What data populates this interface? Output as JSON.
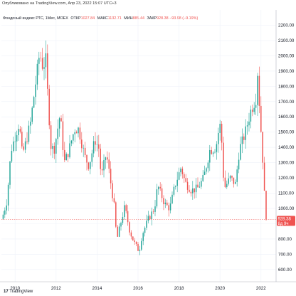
{
  "header": {
    "published": "Опубликовано на TradingView.com, Апр 23, 2022 15:07 UTC+3"
  },
  "legend": {
    "title": "Фондовый индекс РТС, 1Мес, MOEX",
    "open_label": "ОТКР",
    "open_value": "1027.84",
    "high_label": "МАКС",
    "high_value": "1132.71",
    "low_label": "МИН",
    "low_value": "885.44",
    "close_label": "ЗАКР",
    "close_value": "928.38",
    "change": "−93.98 (−9.19%)"
  },
  "price_tag": {
    "value": "928.38",
    "countdown": "8д 9ч"
  },
  "watermark": {
    "logo": "17",
    "text": "TradingView"
  },
  "colors": {
    "up": "#26a69a",
    "down": "#ef5350",
    "grid": "#f0f3fa",
    "axis_text": "#131722"
  },
  "chart_data": {
    "type": "candlestick",
    "title": "Фондовый индекс РТС, 1Мес, MOEX",
    "interval": "1 month",
    "y_axis_position": "right",
    "ylim": [
      520,
      2300
    ],
    "y_ticks": [
      2200,
      2100,
      2000,
      1900,
      1800,
      1700,
      1600,
      1500,
      1400,
      1300,
      1200,
      1100,
      1000,
      900,
      800,
      700,
      600
    ],
    "y_tick_labels": [
      "2200.00",
      "2100.00",
      "2000.00",
      "1900.00",
      "1800.00",
      "1700.00",
      "1600.00",
      "1500.00",
      "1400.00",
      "1300.00",
      "1200.00",
      "1100.00",
      "1000.00",
      "900.00",
      "800.00",
      "700.00",
      "600.00"
    ],
    "x_tick_labels": [
      "2010",
      "2012",
      "2014",
      "2016",
      "2018",
      "2020",
      "2022"
    ],
    "x_tick_years": [
      2010,
      2012,
      2014,
      2016,
      2018,
      2020,
      2022
    ],
    "x_start": 2009.333,
    "x_end": 2022.667,
    "last_price": 928.38,
    "anchors": [
      [
        2009.42,
        960
      ],
      [
        2009.6,
        1050
      ],
      [
        2009.8,
        1380
      ],
      [
        2009.95,
        1450
      ],
      [
        2010.2,
        1560
      ],
      [
        2010.35,
        1350
      ],
      [
        2010.5,
        1420
      ],
      [
        2010.75,
        1560
      ],
      [
        2010.95,
        1770
      ],
      [
        2011.2,
        2020
      ],
      [
        2011.35,
        1930
      ],
      [
        2011.5,
        1970
      ],
      [
        2011.6,
        1720
      ],
      [
        2011.75,
        1410
      ],
      [
        2011.9,
        1380
      ],
      [
        2012.2,
        1620
      ],
      [
        2012.4,
        1300
      ],
      [
        2012.6,
        1370
      ],
      [
        2012.9,
        1520
      ],
      [
        2013.1,
        1520
      ],
      [
        2013.4,
        1340
      ],
      [
        2013.6,
        1280
      ],
      [
        2013.9,
        1450
      ],
      [
        2014.1,
        1390
      ],
      [
        2014.2,
        1200
      ],
      [
        2014.45,
        1360
      ],
      [
        2014.6,
        1230
      ],
      [
        2014.85,
        1000
      ],
      [
        2014.96,
        790
      ],
      [
        2015.2,
        930
      ],
      [
        2015.35,
        1010
      ],
      [
        2015.6,
        850
      ],
      [
        2015.8,
        780
      ],
      [
        2016.05,
        720
      ],
      [
        2016.2,
        830
      ],
      [
        2016.5,
        930
      ],
      [
        2016.8,
        1000
      ],
      [
        2016.96,
        1150
      ],
      [
        2017.3,
        1030
      ],
      [
        2017.55,
        1000
      ],
      [
        2017.8,
        1150
      ],
      [
        2018.1,
        1270
      ],
      [
        2018.3,
        1170
      ],
      [
        2018.6,
        1120
      ],
      [
        2018.9,
        1130
      ],
      [
        2019.2,
        1200
      ],
      [
        2019.5,
        1380
      ],
      [
        2019.8,
        1400
      ],
      [
        2019.98,
        1550
      ],
      [
        2020.05,
        1520
      ],
      [
        2020.2,
        1130
      ],
      [
        2020.5,
        1200
      ],
      [
        2020.75,
        1160
      ],
      [
        2020.95,
        1390
      ],
      [
        2021.2,
        1480
      ],
      [
        2021.5,
        1640
      ],
      [
        2021.75,
        1720
      ],
      [
        2021.83,
        1900
      ],
      [
        2021.96,
        1590
      ],
      [
        2022.05,
        1410
      ],
      [
        2022.12,
        1230
      ],
      [
        2022.2,
        1000
      ],
      [
        2022.25,
        928.38
      ]
    ]
  }
}
